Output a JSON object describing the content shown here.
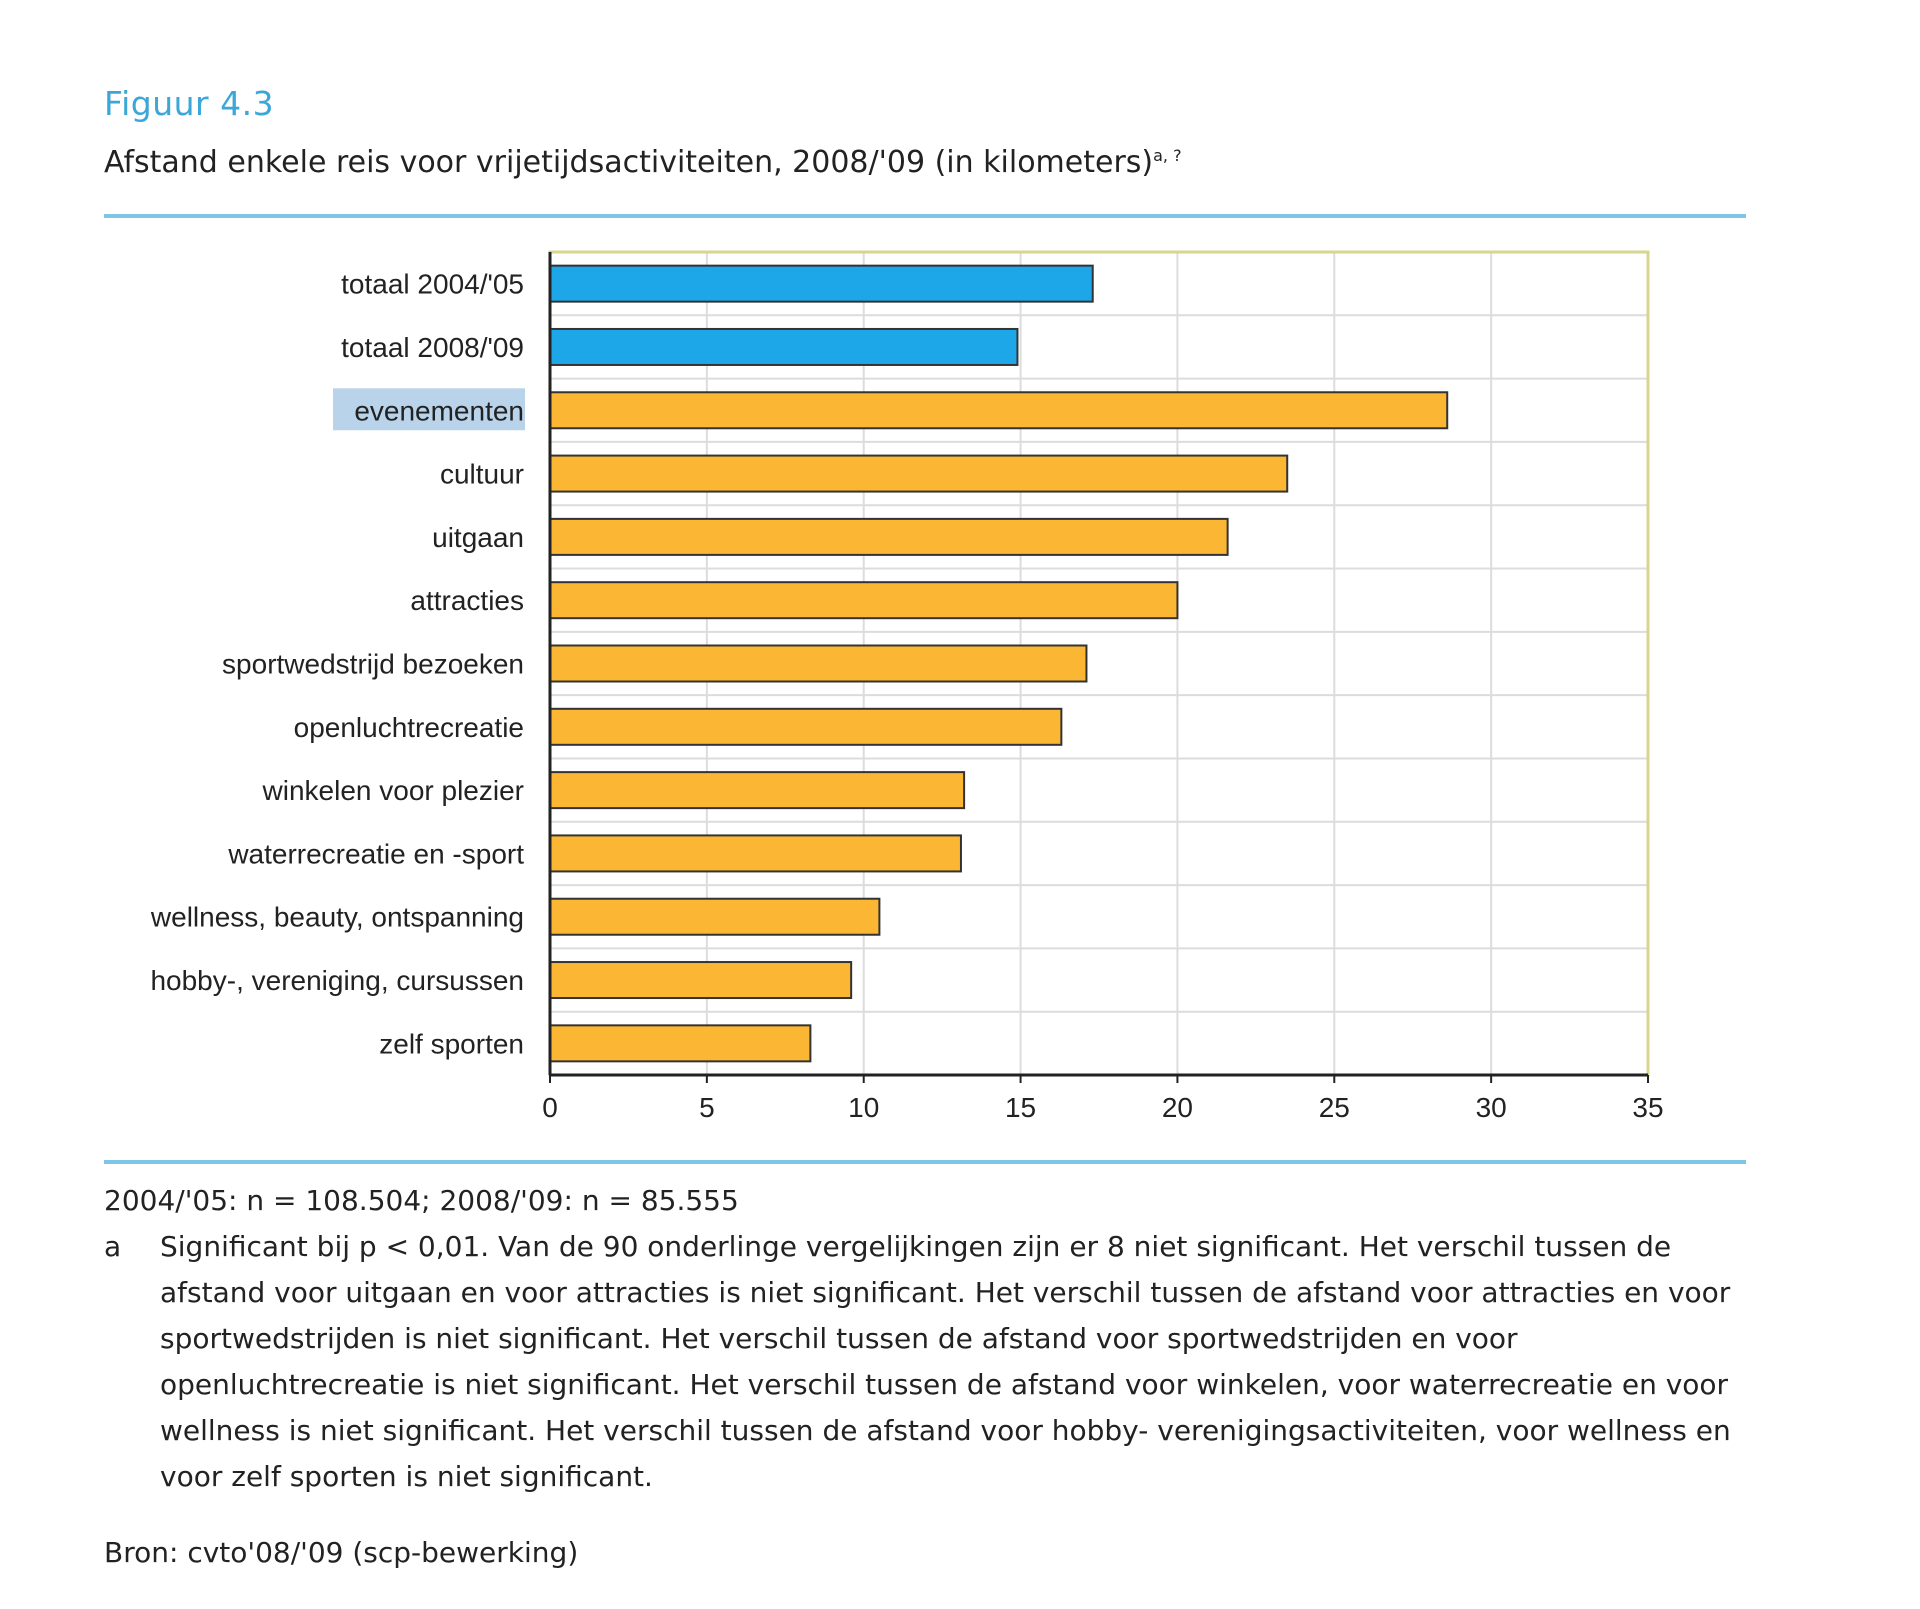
{
  "figure": {
    "label": "Figuur 4.3",
    "title": "Afstand enkele reis voor vrijetijdsactiviteiten, 2008/'09 (in kilometers)",
    "title_superscript": "a, ?"
  },
  "chart_data": {
    "type": "bar",
    "orientation": "horizontal",
    "categories": [
      "totaal 2004/'05",
      "totaal 2008/'09",
      "evenementen",
      "cultuur",
      "uitgaan",
      "attracties",
      "sportwedstrijd bezoeken",
      "openluchtrecreatie",
      "winkelen voor plezier",
      "waterrecreatie en -sport",
      "wellness, beauty, ontspanning",
      "hobby-, vereniging, cursussen",
      "zelf sporten"
    ],
    "values": [
      17.3,
      14.9,
      28.6,
      23.5,
      21.6,
      20.0,
      17.1,
      16.3,
      13.2,
      13.1,
      10.5,
      9.6,
      8.3
    ],
    "bar_colors": [
      "#1ea7e8",
      "#1ea7e8",
      "#fbb733",
      "#fbb733",
      "#fbb733",
      "#fbb733",
      "#fbb733",
      "#fbb733",
      "#fbb733",
      "#fbb733",
      "#fbb733",
      "#fbb733",
      "#fbb733"
    ],
    "highlighted_category": "evenementen",
    "xlim": [
      0,
      35
    ],
    "xticks": [
      0,
      5,
      10,
      15,
      20,
      25,
      30,
      35
    ],
    "xlabel": "",
    "ylabel": "",
    "grid": true,
    "legend": "none"
  },
  "notes": {
    "sample": "2004/'05: n = 108.504; 2008/'09: n = 85.555",
    "footnote_marker": "a",
    "footnote_text": "Significant bij p < 0,01. Van de 90 onderlinge vergelijkingen zijn er 8 niet significant. Het verschil tussen de afstand voor uitgaan en voor attracties is niet significant. Het verschil tussen de afstand voor attracties en voor sportwedstrijden is niet significant. Het verschil tussen de afstand voor sportwedstrijden en voor openluchtrecreatie is niet significant. Het verschil tussen de afstand voor winkelen, voor waterrecreatie en voor wellness is niet significant. Het verschil tussen de afstand voor hobby- verenigingsactiviteiten, voor wellness en voor zelf sporten is niet significant."
  },
  "source": "Bron: cvto'08/'09 (scp-bewerking)",
  "colors": {
    "accent": "#3aa7d8",
    "rule": "#7fc6e6",
    "plot_border": "#d8d58e",
    "grid": "#dcdcdc",
    "bar_stroke": "#333333",
    "highlight": "#b9d4ea"
  }
}
